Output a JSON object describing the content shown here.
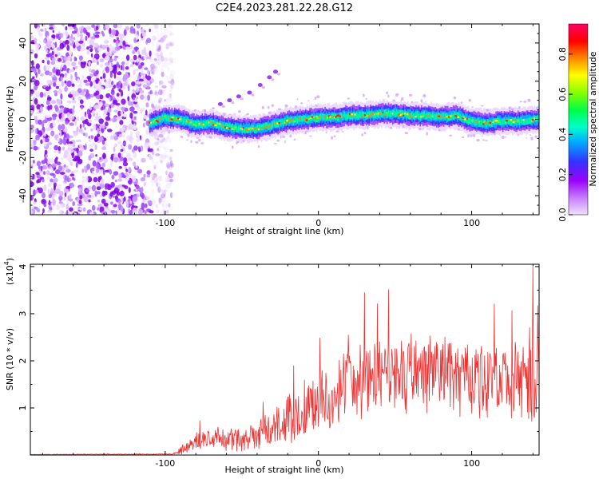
{
  "title": "C2E4.2023.281.22.28.G12",
  "chart_data": [
    {
      "type": "heatmap",
      "panel": "spectrogram",
      "xlabel": "Height of straight line (km)",
      "ylabel": "Frequency (Hz)",
      "xlim": [
        -188,
        144
      ],
      "ylim": [
        -50,
        50
      ],
      "xticks": [
        -100,
        0,
        100
      ],
      "yticks": [
        -40,
        -20,
        0,
        20,
        40
      ],
      "x_tick_labels": [
        "-100",
        "0",
        "100"
      ],
      "y_tick_labels": [
        "-40",
        "-20",
        "0",
        "20",
        "40"
      ],
      "noise_region_x": [
        -188,
        -103
      ],
      "signal_start_x": -110,
      "ridge": {
        "x": [
          -110,
          -100,
          -90,
          -80,
          -70,
          -60,
          -50,
          -40,
          -30,
          -20,
          -10,
          0,
          10,
          20,
          30,
          40,
          50,
          60,
          70,
          80,
          90,
          100,
          110,
          120,
          130,
          144
        ],
        "freq": [
          -2,
          1,
          0,
          -3,
          -2,
          -4,
          -5,
          -5,
          -3,
          -1,
          0,
          1,
          1,
          2,
          2,
          3,
          3,
          2,
          2,
          1,
          2,
          -1,
          -2,
          -1,
          -1,
          0
        ]
      },
      "spur": {
        "x": [
          -64,
          -58,
          -52,
          -45,
          -38,
          -32,
          -28
        ],
        "freq": [
          8,
          10,
          12,
          14,
          18,
          22,
          25
        ]
      },
      "colorbar": {
        "label": "Normalized spectral amplitude",
        "range": [
          0,
          0.95
        ],
        "ticks": [
          0.0,
          0.2,
          0.4,
          0.6,
          0.8
        ],
        "tick_labels": [
          "0.0",
          "0.2",
          "0.4",
          "0.6",
          "0.8"
        ],
        "colors": [
          "#f0e0ff",
          "#9900ff",
          "#3333ff",
          "#00ccff",
          "#00ff66",
          "#88ff00",
          "#ffff00",
          "#ff8800",
          "#ff0000",
          "#ff0066"
        ]
      }
    },
    {
      "type": "line",
      "panel": "snr",
      "xlabel": "Height of straight line (km)",
      "ylabel": "SNR (10 * v/v)",
      "y_multiplier": "(x10",
      "y_multiplier_exp": "4",
      "y_multiplier_close": ")",
      "xlim": [
        -188,
        144
      ],
      "ylim": [
        0,
        4.05
      ],
      "xticks": [
        -100,
        0,
        100
      ],
      "yticks": [
        1,
        2,
        3,
        4
      ],
      "x_tick_labels": [
        "-100",
        "0",
        "100"
      ],
      "y_tick_labels": [
        "1",
        "2",
        "3",
        "4"
      ],
      "color": "#ee3333",
      "envelope": {
        "x": [
          -188,
          -95,
          -90,
          -80,
          -70,
          -60,
          -50,
          -40,
          -30,
          -20,
          -10,
          0,
          10,
          20,
          40,
          60,
          80,
          100,
          120,
          135,
          144
        ],
        "mean": [
          0.01,
          0.02,
          0.1,
          0.3,
          0.35,
          0.3,
          0.3,
          0.4,
          0.55,
          0.75,
          0.95,
          1.1,
          1.3,
          1.5,
          1.7,
          1.75,
          1.75,
          1.65,
          1.6,
          1.6,
          1.5
        ],
        "amp": [
          0.005,
          0.01,
          0.1,
          0.25,
          0.3,
          0.3,
          0.3,
          0.35,
          0.5,
          0.6,
          0.7,
          0.75,
          0.8,
          0.85,
          0.9,
          0.95,
          0.95,
          0.9,
          0.9,
          1.0,
          1.0
        ]
      },
      "peak": {
        "x": 140,
        "y": 4.0
      }
    }
  ]
}
